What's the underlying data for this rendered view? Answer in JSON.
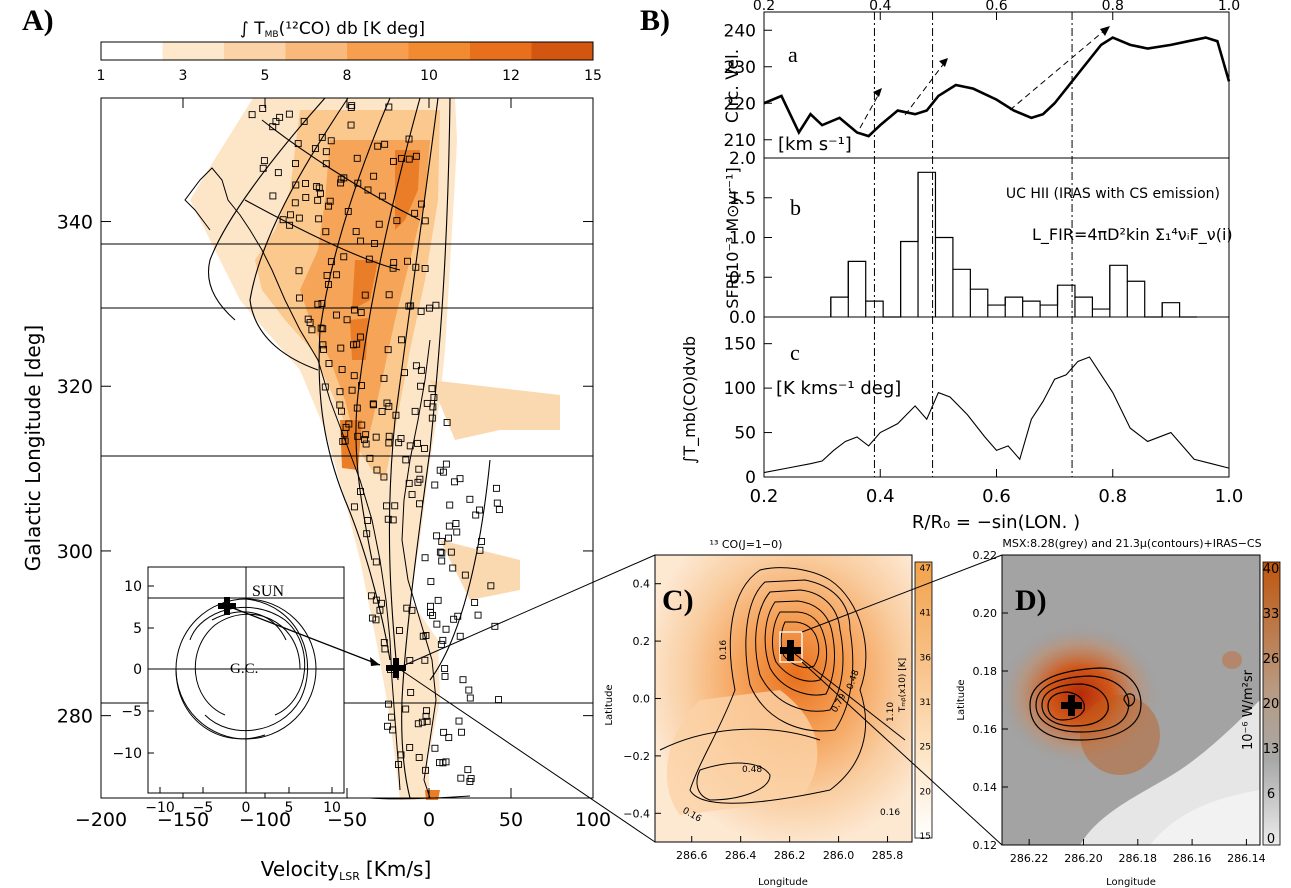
{
  "colors": {
    "cmap": [
      "#ffffff",
      "#fde8cc",
      "#fbd3a6",
      "#f9b97a",
      "#f79f4f",
      "#f28a2f",
      "#e8701c",
      "#d2560f"
    ],
    "ink": "#000000",
    "grey": "#9a9a9a",
    "msx_red": "#c0390b"
  },
  "panel_a": {
    "label": "A)",
    "colorbar": {
      "title": "∫ T",
      "title_sub": "MB",
      "title_rest": "(¹²CO) db [K deg]",
      "ticks": [
        "1",
        "3",
        "5",
        "8",
        "10",
        "12",
        "15"
      ]
    },
    "xlabel": "Velocity",
    "xlabel_sub": "LSR",
    "xlabel_rest": "[Km/s]",
    "ylabel": "Galactic Longitude [deg]",
    "inset": {
      "sun_label": "SUN",
      "gc_label": "G.C.",
      "xticks": [
        "−10",
        "−5",
        "0",
        "5",
        "10"
      ],
      "yticks": [
        "10",
        "5",
        "0",
        "−5",
        "−10"
      ]
    }
  },
  "panel_b": {
    "label": "B)",
    "top_ticks": [
      "0.2",
      "0.4",
      "0.6",
      "0.8",
      "1.0"
    ],
    "bottom_ticks": [
      "0.2",
      "0.4",
      "0.6",
      "0.8",
      "1.0"
    ],
    "xlabel": "R/R₀ =  −sin(LON. )",
    "a": {
      "letter": "a",
      "ylabel": "Circ. Vel.",
      "unit": "[km s⁻¹]",
      "yticks": [
        "240",
        "230",
        "220",
        "210"
      ]
    },
    "b": {
      "letter": "b",
      "ylabel": "SFR[10⁻³ M⊙yr⁻¹]",
      "note": "UC HII (IRAS with CS emission)",
      "formula": "L_FIR=4πD²kin Σ₁⁴νᵢF_ν(i)",
      "yticks": [
        "2.0",
        "1.5",
        "1.0",
        "0.5",
        "0.0"
      ]
    },
    "c": {
      "letter": "c",
      "ylabel": "∫T_mb(CO)dvdb",
      "unit": "[K kms⁻¹ deg]",
      "yticks": [
        "150",
        "100",
        "50",
        "0"
      ]
    }
  },
  "panel_c": {
    "label": "C)",
    "title": "¹³ CO(J=1−0)",
    "xlabel": "Longitude",
    "ylabel": "Latitude",
    "cbar_label": "Tₘᵦ(x10) [K]",
    "cbar_ticks": [
      "47",
      "41",
      "36",
      "31",
      "25",
      "20",
      "15"
    ],
    "contour_labels": [
      "0.16",
      "0.79",
      "0.48",
      "0.48",
      "0.16",
      "0.16",
      "1.10"
    ]
  },
  "panel_d": {
    "label": "D)",
    "title": "MSX:8.28(grey) and 21.3μ(contours)+IRAS−CS",
    "xlabel": "Longitude",
    "ylabel": "Latitude",
    "cbar_label": "10⁻⁶ W/m²sr",
    "cbar_ticks": [
      "40",
      "33",
      "26",
      "20",
      "13",
      "6",
      "0"
    ]
  },
  "chart_data": [
    {
      "type": "heatmap",
      "panel": "A",
      "title": "∫ T_MB(¹²CO) db [K deg]",
      "xlabel": "Velocity_LSR [Km/s]",
      "ylabel": "Galactic Longitude [deg]",
      "xlim": [
        -200,
        100
      ],
      "ylim": [
        270,
        355
      ],
      "x_ticks": [
        -200,
        -150,
        -100,
        -50,
        0,
        50,
        100
      ],
      "y_ticks": [
        280,
        300,
        320,
        340
      ],
      "colorbar_ticks": [
        1,
        3,
        5,
        8,
        10,
        12,
        15
      ],
      "horizontal_lines": [
        337,
        329.5,
        311.5,
        282
      ]
    },
    {
      "type": "line",
      "panel": "B.a",
      "xlabel": "R/R₀ = −sin(LON.)",
      "ylabel": "Circ. Vel. [km s⁻¹]",
      "xlim": [
        0.2,
        1.0
      ],
      "ylim": [
        205,
        245
      ],
      "x": [
        0.2,
        0.23,
        0.26,
        0.28,
        0.3,
        0.33,
        0.36,
        0.38,
        0.4,
        0.43,
        0.46,
        0.48,
        0.5,
        0.53,
        0.56,
        0.6,
        0.63,
        0.66,
        0.68,
        0.7,
        0.72,
        0.75,
        0.78,
        0.8,
        0.83,
        0.86,
        0.9,
        0.93,
        0.96,
        0.98,
        1.0
      ],
      "y": [
        220,
        222,
        212,
        217,
        214,
        216,
        212,
        211,
        214,
        218,
        217,
        218,
        222,
        225,
        224,
        221,
        218,
        216,
        217,
        220,
        224,
        230,
        236,
        238,
        236,
        235,
        236,
        237,
        238,
        237,
        226
      ],
      "vlines": [
        0.39,
        0.49,
        0.73
      ]
    },
    {
      "type": "bar",
      "panel": "B.b",
      "ylabel": "SFR[10⁻³ M⊙yr⁻¹]",
      "ylim": [
        0,
        2.0
      ],
      "categories": [
        "0.33",
        "0.36",
        "0.39",
        "0.42",
        "0.45",
        "0.48",
        "0.51",
        "0.54",
        "0.57",
        "0.60",
        "0.63",
        "0.66",
        "0.69",
        "0.72",
        "0.75",
        "0.78",
        "0.81",
        "0.84",
        "0.87",
        "0.90",
        "0.93"
      ],
      "values": [
        0.25,
        0.7,
        0.2,
        0.0,
        0.95,
        1.82,
        1.0,
        0.6,
        0.35,
        0.15,
        0.25,
        0.2,
        0.15,
        0.4,
        0.25,
        0.1,
        0.65,
        0.45,
        0.0,
        0.18,
        0.0
      ]
    },
    {
      "type": "line",
      "panel": "B.c",
      "ylabel": "∫T_mb(CO)dvdb [K kms⁻¹ deg]",
      "ylim": [
        0,
        180
      ],
      "x": [
        0.2,
        0.24,
        0.28,
        0.3,
        0.32,
        0.34,
        0.36,
        0.38,
        0.4,
        0.43,
        0.46,
        0.48,
        0.5,
        0.52,
        0.55,
        0.58,
        0.6,
        0.62,
        0.64,
        0.66,
        0.68,
        0.7,
        0.72,
        0.74,
        0.76,
        0.78,
        0.8,
        0.83,
        0.86,
        0.9,
        0.94,
        0.97,
        1.0
      ],
      "y": [
        5,
        10,
        15,
        18,
        30,
        40,
        45,
        35,
        50,
        60,
        80,
        65,
        95,
        90,
        70,
        45,
        30,
        35,
        20,
        65,
        85,
        110,
        115,
        130,
        135,
        115,
        95,
        55,
        40,
        50,
        20,
        15,
        10
      ],
      "vlines": [
        0.39,
        0.49,
        0.73
      ]
    },
    {
      "type": "heatmap",
      "panel": "C",
      "title": "¹³ CO(J=1−0)",
      "xlabel": "Longitude",
      "ylabel": "Latitude",
      "x_ticks": [
        286.6,
        286.4,
        286.2,
        286.0,
        285.8
      ],
      "y_ticks": [
        0.4,
        0.2,
        0.0,
        -0.2,
        -0.4
      ],
      "colorbar_ticks": [
        15,
        20,
        25,
        31,
        36,
        41,
        47
      ]
    },
    {
      "type": "heatmap",
      "panel": "D",
      "title": "MSX:8.28(grey) and 21.3μ(contours)+IRAS−CS",
      "xlabel": "Longitude",
      "ylabel": "Latitude",
      "x_ticks": [
        286.22,
        286.2,
        286.18,
        286.16,
        286.14
      ],
      "y_ticks": [
        0.22,
        0.2,
        0.18,
        0.16,
        0.14,
        0.12
      ],
      "colorbar_ticks": [
        0,
        6,
        13,
        20,
        26,
        33,
        40
      ]
    }
  ]
}
